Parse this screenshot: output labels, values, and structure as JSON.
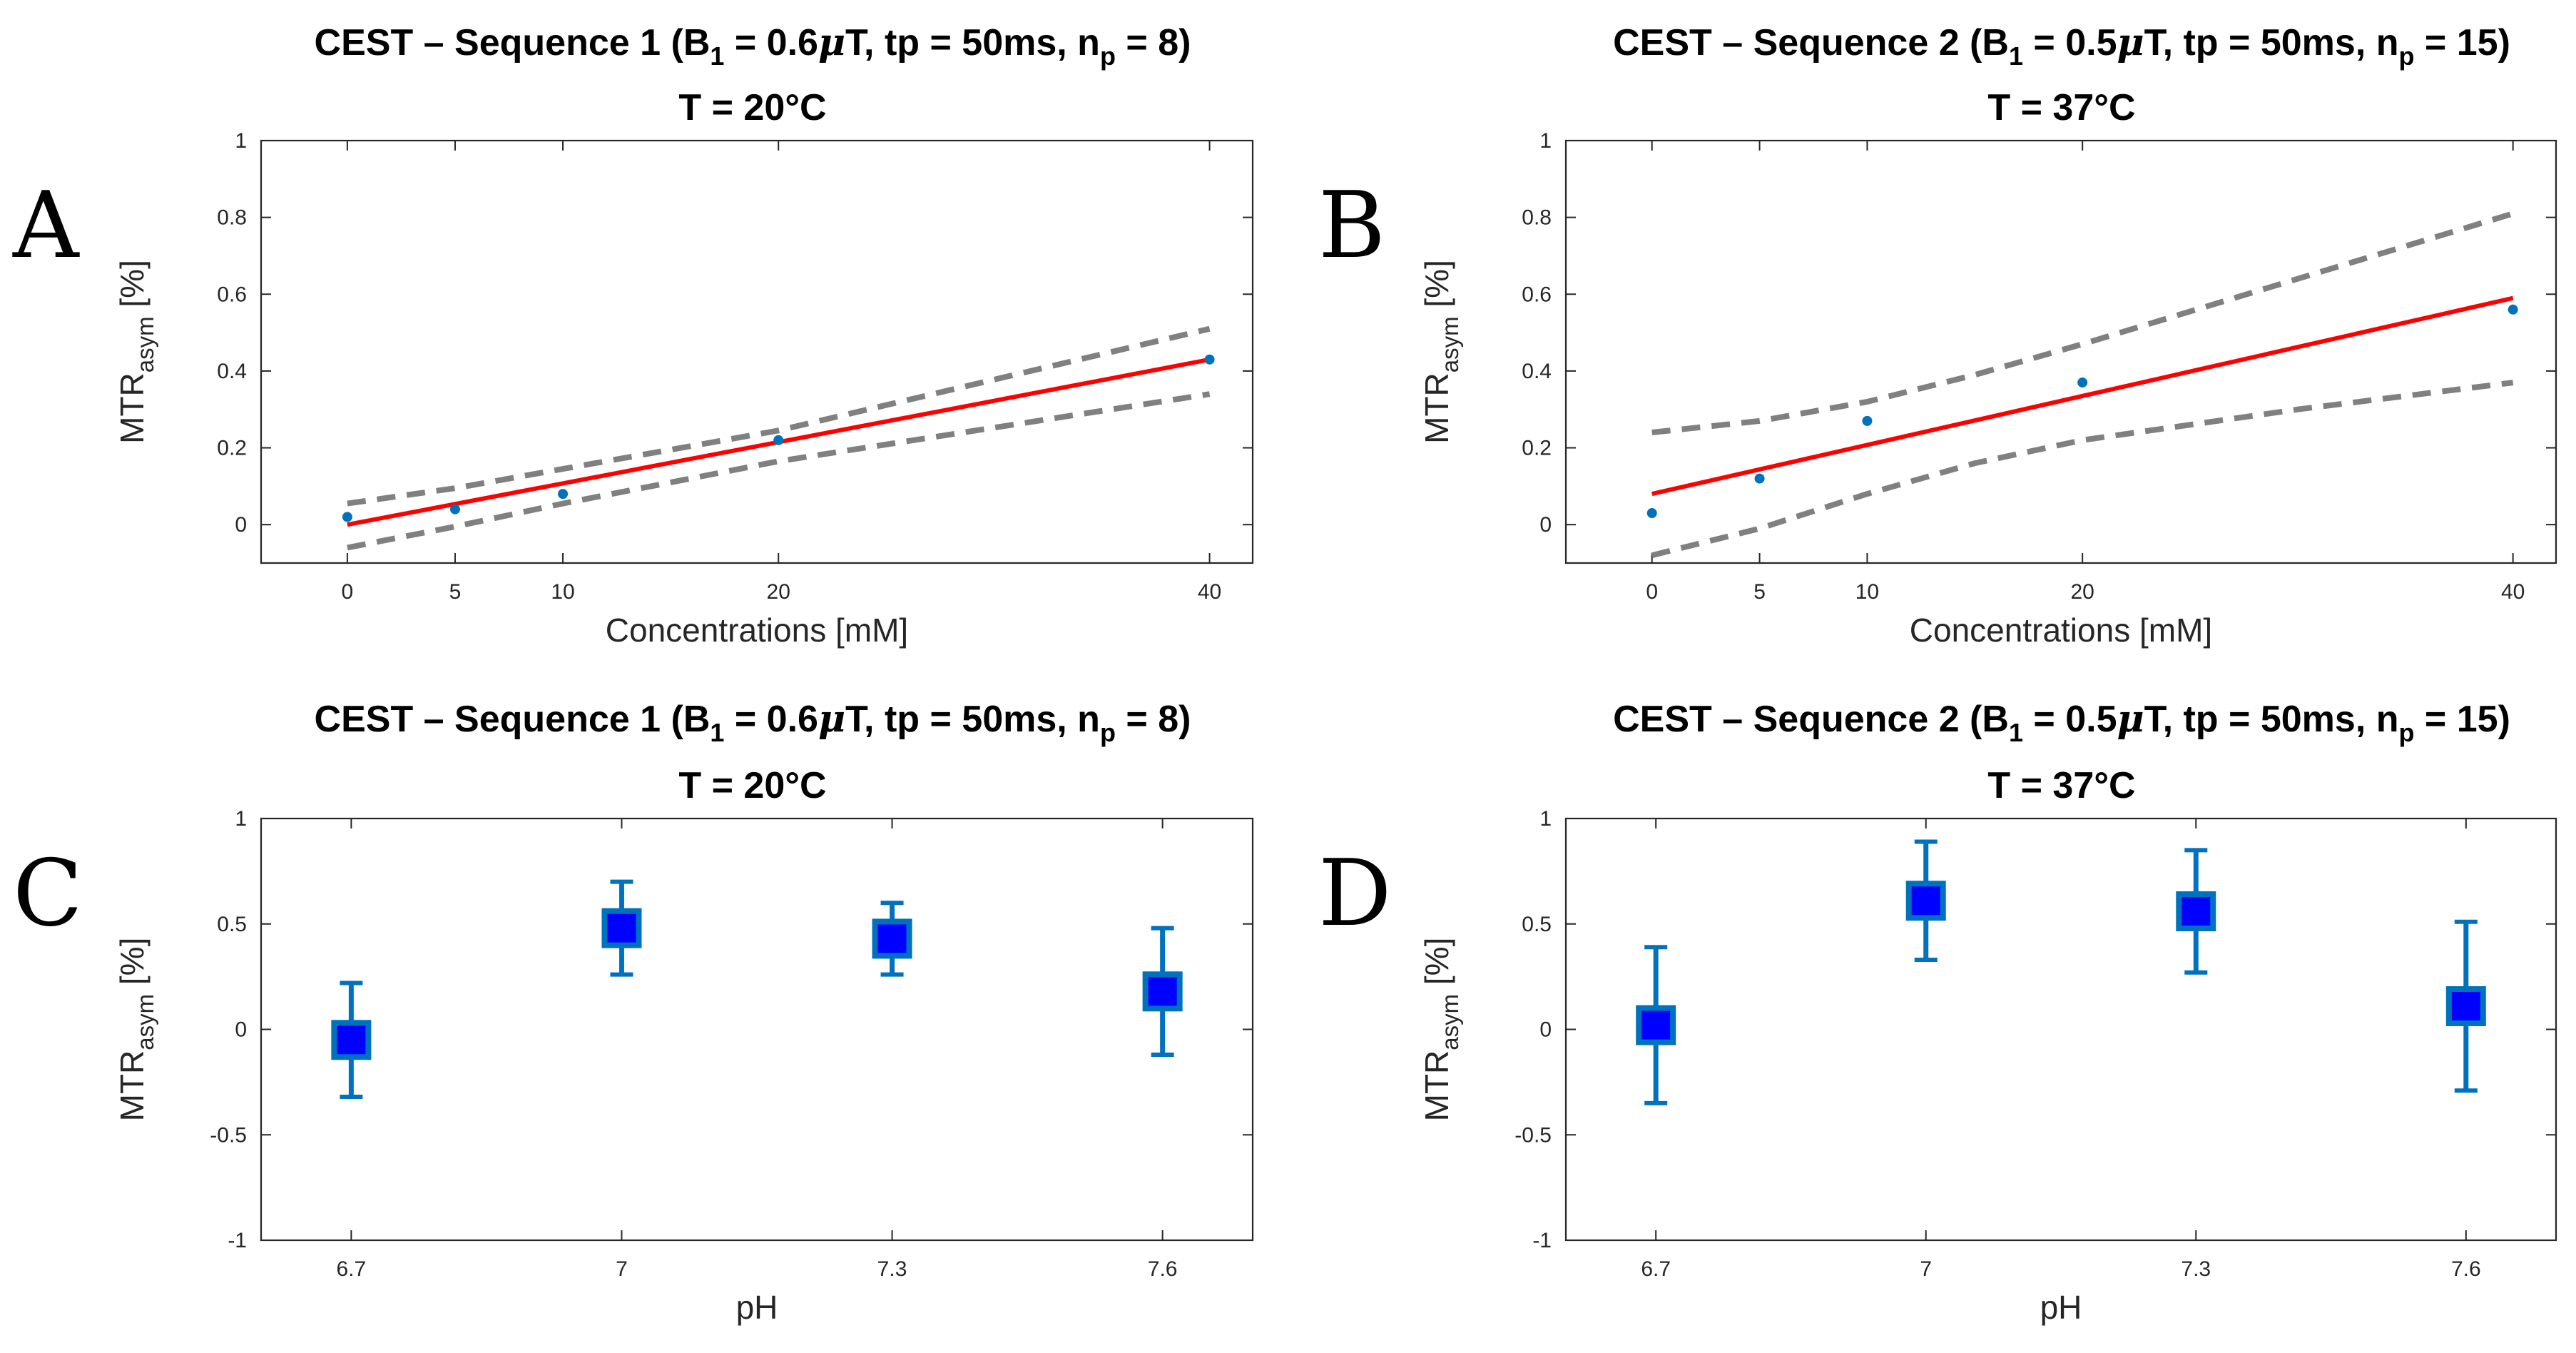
{
  "chart_data": [
    {
      "panel_letter": "A",
      "type": "scatter",
      "title_parts": [
        "CEST – Sequence 1 (B",
        "1",
        " = 0.6",
        "μ",
        "T, tp = 50ms, n",
        "p",
        " = 8)"
      ],
      "subtitle": "T = 20°C",
      "xlabel": "Concentrations [mM]",
      "ylabel_main": "MTR",
      "ylabel_sub": "asym",
      "ylabel_unit": " [%]",
      "xlim": [
        -4,
        42
      ],
      "ylim": [
        -0.1,
        1
      ],
      "xticks": [
        0,
        5,
        10,
        20,
        40
      ],
      "xtick_labels": [
        "0",
        "5",
        "10",
        "20",
        "40"
      ],
      "yticks": [
        0,
        0.2,
        0.4,
        0.6,
        0.8,
        1
      ],
      "ytick_labels": [
        "0",
        "0.2",
        "0.4",
        "0.6",
        "0.8",
        "1"
      ],
      "points": {
        "x": [
          0,
          5,
          10,
          20,
          40
        ],
        "y": [
          0.02,
          0.04,
          0.08,
          0.22,
          0.43
        ]
      },
      "fit": {
        "x": [
          0,
          40
        ],
        "y": [
          0.0,
          0.43
        ]
      },
      "ci_upper": {
        "x": [
          0,
          5,
          10,
          20,
          40
        ],
        "y": [
          0.055,
          0.095,
          0.145,
          0.245,
          0.51
        ]
      },
      "ci_lower": {
        "x": [
          0,
          5,
          10,
          20,
          40
        ],
        "y": [
          -0.06,
          -0.005,
          0.055,
          0.165,
          0.34
        ]
      },
      "colors": {
        "points": "#0072BD",
        "fit": "#ff0000",
        "ci": "#808080"
      }
    },
    {
      "panel_letter": "B",
      "type": "scatter",
      "title_parts": [
        "CEST – Sequence 2 (B",
        "1",
        " = 0.5",
        "μ",
        "T, tp = 50ms, n",
        "p",
        " = 15)"
      ],
      "subtitle": "T = 37°C",
      "xlabel": "Concentrations [mM]",
      "ylabel_main": "MTR",
      "ylabel_sub": "asym",
      "ylabel_unit": " [%]",
      "xlim": [
        -4,
        42
      ],
      "ylim": [
        -0.1,
        1
      ],
      "xticks": [
        0,
        5,
        10,
        20,
        40
      ],
      "xtick_labels": [
        "0",
        "5",
        "10",
        "20",
        "40"
      ],
      "yticks": [
        0,
        0.2,
        0.4,
        0.6,
        0.8,
        1
      ],
      "ytick_labels": [
        "0",
        "0.2",
        "0.4",
        "0.6",
        "0.8",
        "1"
      ],
      "points": {
        "x": [
          0,
          5,
          10,
          20,
          40
        ],
        "y": [
          0.03,
          0.12,
          0.27,
          0.37,
          0.56
        ]
      },
      "fit": {
        "x": [
          0,
          40
        ],
        "y": [
          0.08,
          0.59
        ]
      },
      "ci_upper": {
        "x": [
          0,
          5,
          10,
          15,
          20,
          30,
          40
        ],
        "y": [
          0.24,
          0.27,
          0.32,
          0.39,
          0.47,
          0.64,
          0.81
        ]
      },
      "ci_lower": {
        "x": [
          0,
          5,
          10,
          15,
          20,
          30,
          40
        ],
        "y": [
          -0.08,
          -0.01,
          0.08,
          0.16,
          0.22,
          0.3,
          0.37
        ]
      },
      "colors": {
        "points": "#0072BD",
        "fit": "#ff0000",
        "ci": "#808080"
      }
    },
    {
      "panel_letter": "C",
      "type": "scatter",
      "title_parts": [
        "CEST – Sequence 1 (B",
        "1",
        " = 0.6",
        "μ",
        "T, tp = 50ms, n",
        "p",
        " = 8)"
      ],
      "subtitle": "T = 20°C",
      "xlabel": "pH",
      "ylabel_main": "MTR",
      "ylabel_sub": "asym",
      "ylabel_unit": " [%]",
      "xlim": [
        6.6,
        7.7
      ],
      "ylim": [
        -1,
        1
      ],
      "xticks": [
        6.7,
        7,
        7.3,
        7.6
      ],
      "xtick_labels": [
        "6.7",
        "7",
        "7.3",
        "7.6"
      ],
      "yticks": [
        -1,
        -0.5,
        0,
        0.5,
        1
      ],
      "ytick_labels": [
        "-1",
        "-0.5",
        "0",
        "0.5",
        "1"
      ],
      "errorbars": {
        "x": [
          6.7,
          7,
          7.3,
          7.6
        ],
        "y": [
          -0.05,
          0.48,
          0.43,
          0.18
        ],
        "err_low": [
          -0.32,
          0.26,
          0.26,
          -0.12
        ],
        "err_high": [
          0.22,
          0.7,
          0.6,
          0.48
        ]
      },
      "colors": {
        "marker_face": "#0000ff",
        "marker_edge": "#0072BD",
        "errorbar": "#0072BD"
      }
    },
    {
      "panel_letter": "D",
      "type": "scatter",
      "title_parts": [
        "CEST – Sequence 2 (B",
        "1",
        " = 0.5",
        "μ",
        "T, tp = 50ms, n",
        "p",
        " = 15)"
      ],
      "subtitle": "T = 37°C",
      "xlabel": "pH",
      "ylabel_main": "MTR",
      "ylabel_sub": "asym",
      "ylabel_unit": " [%]",
      "xlim": [
        6.6,
        7.7
      ],
      "ylim": [
        -1,
        1
      ],
      "xticks": [
        6.7,
        7,
        7.3,
        7.6
      ],
      "xtick_labels": [
        "6.7",
        "7",
        "7.3",
        "7.6"
      ],
      "yticks": [
        -1,
        -0.5,
        0,
        0.5,
        1
      ],
      "ytick_labels": [
        "-1",
        "-0.5",
        "0",
        "0.5",
        "1"
      ],
      "errorbars": {
        "x": [
          6.7,
          7,
          7.3,
          7.6
        ],
        "y": [
          0.02,
          0.61,
          0.56,
          0.11
        ],
        "err_low": [
          -0.35,
          0.33,
          0.27,
          -0.29
        ],
        "err_high": [
          0.39,
          0.89,
          0.85,
          0.51
        ]
      },
      "colors": {
        "marker_face": "#0000ff",
        "marker_edge": "#0072BD",
        "errorbar": "#0072BD"
      }
    }
  ]
}
